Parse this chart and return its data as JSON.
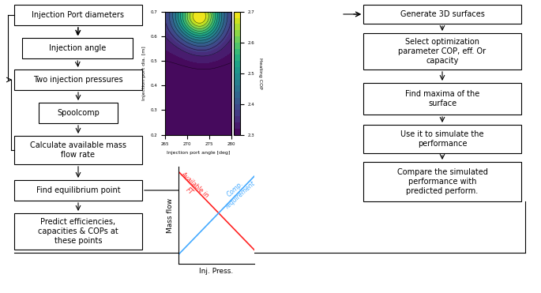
{
  "flowchart_left": [
    "Injection Port diameters",
    "Injection angle",
    "Two injection pressures",
    "Spoolcomp",
    "Calculate available mass\nflow rate",
    "Find equilibrium point",
    "Predict efficiencies,\ncapacities & COPs at\nthese points"
  ],
  "flowchart_right": [
    "Generate 3D surfaces",
    "Select optimization\nparameter COP, eff. Or\ncapacity",
    "Find maxima of the\nsurface",
    "Use it to simulate the\nperformance",
    "Compare the simulated\nperformance with\npredicted perform."
  ],
  "surface_xlabel": "Injection port angle [deg]",
  "surface_ylabel": "Injection port dia. [m]",
  "surface_clabel": "Heating COP",
  "massflow_xlabel": "Inj. Press.",
  "massflow_ylabel": "Mass flow",
  "bg_color": "#ffffff",
  "line1_color": "#ff2222",
  "line2_color": "#44aaff"
}
